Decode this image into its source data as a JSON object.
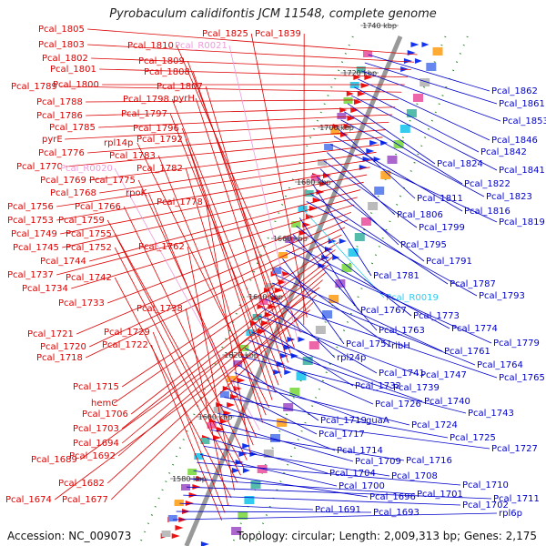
{
  "title": "Pyrobaculum calidifontis JCM 11548, complete genome",
  "footer": {
    "accession": "Accession: NC_009073",
    "summary": "Topology: circular; Length: 2,009,313 bp; Genes: 2,175"
  },
  "colors": {
    "left_label": "#dd0000",
    "right_label": "#0000cc",
    "rna_left": "#ee99dd",
    "rna_right": "#33ccee",
    "backbone": "#999999",
    "tick": "#228822"
  },
  "scale_labels": [
    "1740 kbp",
    "1720 kbp",
    "1700 kbp",
    "1680 kbp",
    "1660 kbp",
    "1640 kbp",
    "1620 kbp",
    "1600 kbp",
    "1580 kbp"
  ],
  "left_labels": [
    "Pcal_1805",
    "Pcal_1803",
    "Pcal_1802",
    "Pcal_1801",
    "Pcal_1800",
    "Pcal_1789",
    "Pcal_1788",
    "Pcal_1786",
    "Pcal_1785",
    "pyrE",
    "Pcal_1776",
    "Pcal_1770",
    "Pcal_1769",
    "Pcal_1768",
    "Pcal_1756",
    "Pcal_1753",
    "Pcal_1749",
    "Pcal_1745",
    "Pcal_1744",
    "Pcal_1737",
    "Pcal_1734",
    "Pcal_1733",
    "Pcal_1721",
    "Pcal_1720",
    "Pcal_1718",
    "Pcal_1715",
    "hemC",
    "Pcal_1706",
    "Pcal_1703",
    "Pcal_1694",
    "Pcal_1692",
    "Pcal_1689",
    "Pcal_1682",
    "Pcal_1677",
    "Pcal_1674",
    "Pcal_1825",
    "Pcal_1839",
    "Pcal_1810",
    "Pcal_R0021",
    "Pcal_1809",
    "Pcal_1808",
    "Pcal_1807",
    "pyrH",
    "Pcal_1798",
    "Pcal_1797",
    "Pcal_1796",
    "Pcal_1792",
    "rpl14p",
    "Pcal_1783",
    "Pcal_1782",
    "Pcal_R0020",
    "Pcal_1775",
    "rpoK",
    "Pcal_1778",
    "Pcal_1766",
    "Pcal_1759",
    "Pcal_1755",
    "Pcal_1752",
    "Pcal_1762",
    "Pcal_1742",
    "Pcal_1738",
    "Pcal_1729",
    "Pcal_1722"
  ],
  "right_labels": [
    "Pcal_1862",
    "Pcal_1861",
    "Pcal_1853",
    "Pcal_1846",
    "Pcal_1842",
    "Pcal_1841",
    "Pcal_1824",
    "Pcal_1822",
    "Pcal_1823",
    "Pcal_1811",
    "Pcal_1816",
    "Pcal_1819",
    "Pcal_1806",
    "Pcal_1799",
    "Pcal_1795",
    "Pcal_1791",
    "Pcal_1781",
    "Pcal_1787",
    "Pcal_1793",
    "Pcal_R0019",
    "Pcal_1767",
    "Pcal_1773",
    "Pcal_1763",
    "Pcal_1774",
    "Pcal_1779",
    "Pcal_1751",
    "ribH",
    "Pcal_1761",
    "Pcal_1764",
    "rpl24p",
    "Pcal_1765",
    "Pcal_1741",
    "Pcal_1747",
    "Pcal_1732",
    "Pcal_1739",
    "Pcal_1740",
    "Pcal_1726",
    "Pcal_1743",
    "Pcal_1719",
    "guaA",
    "Pcal_1724",
    "Pcal_1717",
    "Pcal_1725",
    "Pcal_1714",
    "Pcal_1727",
    "Pcal_1709",
    "Pcal_1716",
    "Pcal_1704",
    "Pcal_1708",
    "Pcal_1700",
    "Pcal_1710",
    "Pcal_1696",
    "Pcal_1701",
    "Pcal_1711",
    "Pcal_1702",
    "Pcal_1691",
    "Pcal_1693",
    "rpl6p"
  ]
}
